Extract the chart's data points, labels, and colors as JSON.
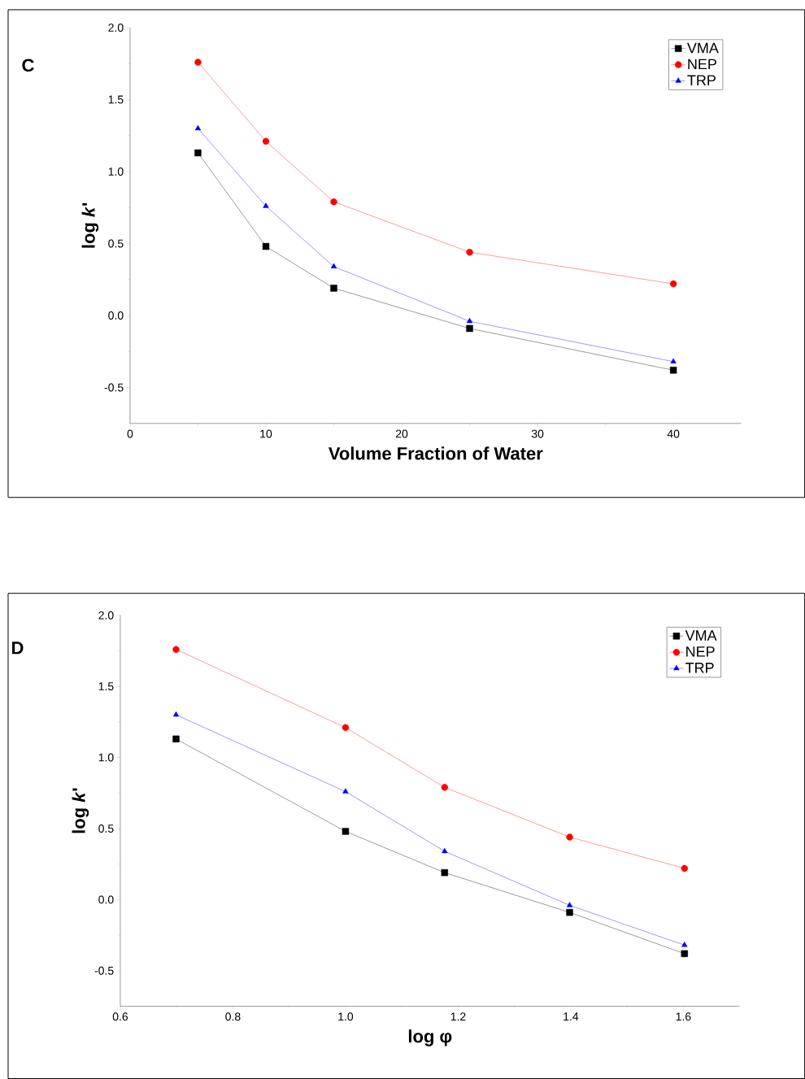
{
  "chart_data": [
    {
      "type": "line",
      "xlabel": "Volume Fraction of Water",
      "ylabel": "log *k*'",
      "annotations": [
        "C"
      ],
      "x": [
        5,
        10,
        15,
        25,
        40
      ],
      "series": [
        {
          "name": "VMA",
          "color": "#000000",
          "marker": "square",
          "values": [
            1.13,
            0.48,
            0.19,
            -0.09,
            -0.38
          ]
        },
        {
          "name": "NEP",
          "color": "#ff0000",
          "marker": "circle",
          "values": [
            1.76,
            1.21,
            0.79,
            0.44,
            0.22
          ]
        },
        {
          "name": "TRP",
          "color": "#0000ff",
          "marker": "triangle",
          "values": [
            1.3,
            0.76,
            0.34,
            -0.04,
            -0.32
          ]
        }
      ],
      "xlim": [
        0,
        45
      ],
      "xticks": [
        0,
        10,
        20,
        30,
        40
      ],
      "ylim": [
        -0.75,
        2.0
      ],
      "yticks": [
        {
          "value": -0.5,
          "label": "-0.5"
        },
        {
          "value": 0,
          "label": "0.0"
        },
        {
          "value": 0.5,
          "label": "0.5"
        },
        {
          "value": 1,
          "label": "1.0"
        },
        {
          "value": 1.5,
          "label": "1.5"
        },
        {
          "value": 2,
          "label": "2.0"
        }
      ],
      "legend": "top right",
      "line_style": "solid"
    },
    {
      "type": "line",
      "xlabel": "log φ",
      "ylabel": "log *k*'",
      "annotations": [
        "D"
      ],
      "x": [
        0.699,
        1.0,
        1.176,
        1.398,
        1.602
      ],
      "series": [
        {
          "name": "VMA",
          "color": "#000000",
          "marker": "square",
          "values": [
            1.13,
            0.48,
            0.19,
            -0.09,
            -0.38
          ]
        },
        {
          "name": "NEP",
          "color": "#ff0000",
          "marker": "circle",
          "values": [
            1.76,
            1.21,
            0.79,
            0.44,
            0.22
          ]
        },
        {
          "name": "TRP",
          "color": "#0000ff",
          "marker": "triangle",
          "values": [
            1.3,
            0.76,
            0.34,
            -0.04,
            -0.32
          ]
        }
      ],
      "xlim": [
        0.6,
        1.7
      ],
      "xticks": [
        0.6,
        0.8,
        {
          "value": 1,
          "label": "1.0"
        },
        1.2,
        1.4,
        1.6
      ],
      "ylim": [
        -0.75,
        2.0
      ],
      "yticks": [
        {
          "value": -0.5,
          "label": "-0.5"
        },
        {
          "value": 0,
          "label": "0.0"
        },
        {
          "value": 0.5,
          "label": "0.5"
        },
        {
          "value": 1,
          "label": "1.0"
        },
        {
          "value": 1.5,
          "label": "1.5"
        },
        {
          "value": 2,
          "label": "2.0"
        }
      ],
      "legend": "top right",
      "line_style": "solid"
    }
  ]
}
